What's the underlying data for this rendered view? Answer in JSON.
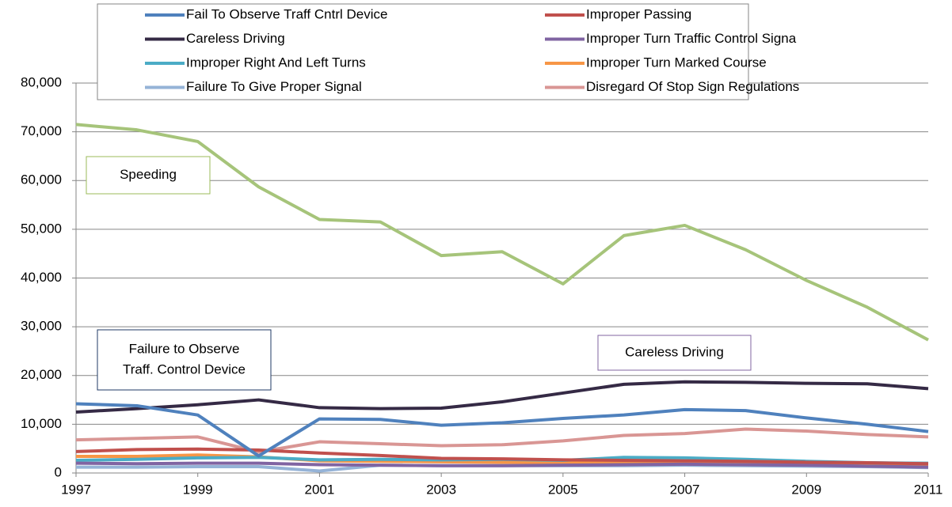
{
  "chart_data": {
    "type": "line",
    "x": [
      1997,
      1998,
      1999,
      2000,
      2001,
      2002,
      2003,
      2004,
      2005,
      2006,
      2007,
      2008,
      2009,
      2010,
      2011
    ],
    "xlim": [
      1997,
      2011
    ],
    "xticks": [
      1997,
      1999,
      2001,
      2003,
      2005,
      2007,
      2009,
      2011
    ],
    "ylim": [
      0,
      80000
    ],
    "yticks": [
      0,
      {
        "value": 10000,
        "label": "10,000"
      },
      {
        "value": 20000,
        "label": "20,000"
      },
      {
        "value": 30000,
        "label": "30,000"
      },
      {
        "value": 40000,
        "label": "40,000"
      },
      {
        "value": 50000,
        "label": "50,000"
      },
      {
        "value": 60000,
        "label": "60,000"
      },
      {
        "value": 70000,
        "label": "70,000"
      },
      {
        "value": 80000,
        "label": "80,000"
      }
    ],
    "grid": true,
    "series": [
      {
        "name": "Fail To Observe Traff Cntrl Device",
        "color": "#4f81bd",
        "values": [
          14200,
          13800,
          11900,
          3500,
          11100,
          11000,
          9800,
          10300,
          11200,
          11900,
          13000,
          12800,
          11300,
          10000,
          8500
        ]
      },
      {
        "name": "Improper Passing",
        "color": "#c0504d",
        "values": [
          4400,
          4800,
          4900,
          4700,
          4100,
          3600,
          3000,
          2900,
          2700,
          2600,
          2500,
          2400,
          2200,
          2100,
          1900
        ]
      },
      {
        "name": "Careless Driving",
        "color": "#352a45",
        "values": [
          12500,
          13200,
          14000,
          15000,
          13400,
          13200,
          13300,
          14600,
          16400,
          18200,
          18700,
          18600,
          18400,
          18300,
          17300
        ]
      },
      {
        "name": "Improper Turn Traffic Control Signa",
        "color": "#8064a2",
        "values": [
          2000,
          1900,
          2000,
          2000,
          1700,
          1600,
          1500,
          1500,
          1600,
          1700,
          1800,
          1700,
          1600,
          1400,
          1200
        ]
      },
      {
        "name": "Improper Right And Left Turns",
        "color": "#4bacc6",
        "values": [
          2600,
          2800,
          3100,
          3200,
          2700,
          2800,
          2700,
          2800,
          2600,
          3200,
          3100,
          2800,
          2400,
          2100,
          2000
        ]
      },
      {
        "name": "Improper Turn Marked Course",
        "color": "#f79646",
        "values": [
          3400,
          3400,
          3700,
          3300,
          2500,
          2400,
          2300,
          2200,
          2200,
          2200,
          2100,
          2000,
          1900,
          1800,
          1700
        ]
      },
      {
        "name": "Failure To Give Proper Signal",
        "color": "#95b3d7",
        "values": [
          1200,
          1200,
          1300,
          1300,
          400,
          1600,
          1500,
          1500,
          1500,
          1500,
          1600,
          1500,
          1400,
          1300,
          1100
        ]
      },
      {
        "name": "Disregard Of Stop Sign Regulations",
        "color": "#d99694",
        "values": [
          6800,
          7100,
          7400,
          4300,
          6400,
          6000,
          5600,
          5800,
          6600,
          7700,
          8100,
          9000,
          8600,
          7900,
          7400
        ]
      },
      {
        "color": "#a6c47a",
        "values": [
          71500,
          70400,
          68000,
          58700,
          52000,
          51500,
          44600,
          45400,
          38800,
          48700,
          50800,
          45800,
          39500,
          34000,
          27300
        ]
      }
    ],
    "annotations": [
      {
        "text": [
          "Speeding"
        ],
        "color": "#9bbb59"
      },
      {
        "text": [
          "Failure to Observe",
          "Traff. Control Device"
        ],
        "color": "#1f3864"
      },
      {
        "text": [
          "Careless Driving"
        ],
        "color": "#8064a2"
      }
    ]
  }
}
